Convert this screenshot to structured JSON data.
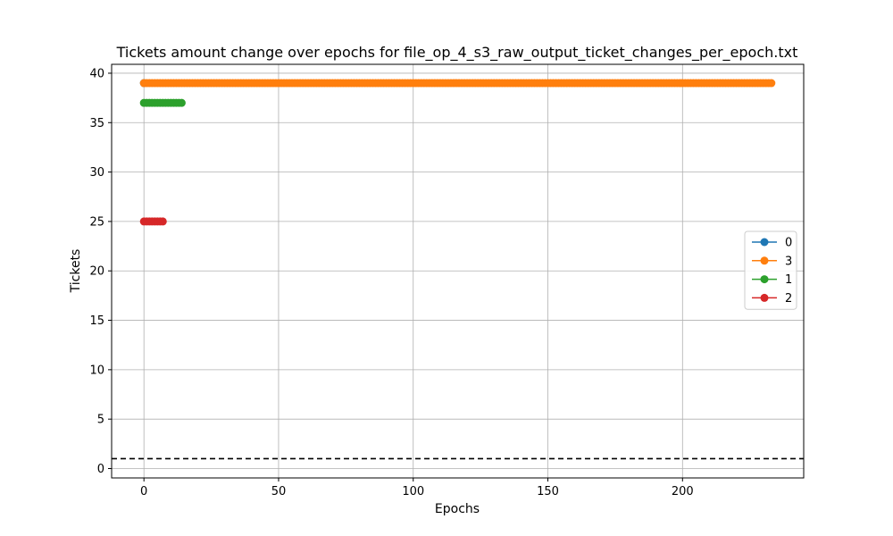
{
  "chart_data": {
    "type": "line",
    "title": "Tickets amount change over epochs for file_op_4_s3_raw_output_ticket_changes_per_epoch.txt",
    "xlabel": "Epochs",
    "ylabel": "Tickets",
    "xlim": [
      -12,
      245
    ],
    "ylim": [
      -0.95,
      40.9
    ],
    "xticks": [
      0,
      50,
      100,
      150,
      200
    ],
    "yticks": [
      0,
      5,
      10,
      15,
      20,
      25,
      30,
      35,
      40
    ],
    "grid": true,
    "legend_position": "center-right",
    "series": [
      {
        "name": "0",
        "color": "#1f77b4",
        "x_start": 0,
        "x_end": 0,
        "value": 39
      },
      {
        "name": "3",
        "color": "#ff7f0e",
        "x_start": 0,
        "x_end": 233,
        "value": 39
      },
      {
        "name": "1",
        "color": "#2ca02c",
        "x_start": 0,
        "x_end": 14,
        "value": 37
      },
      {
        "name": "2",
        "color": "#d62728",
        "x_start": 0,
        "x_end": 7,
        "value": 25
      }
    ],
    "reference_line": {
      "y": 1,
      "style": "dashed",
      "color": "#000000"
    }
  }
}
